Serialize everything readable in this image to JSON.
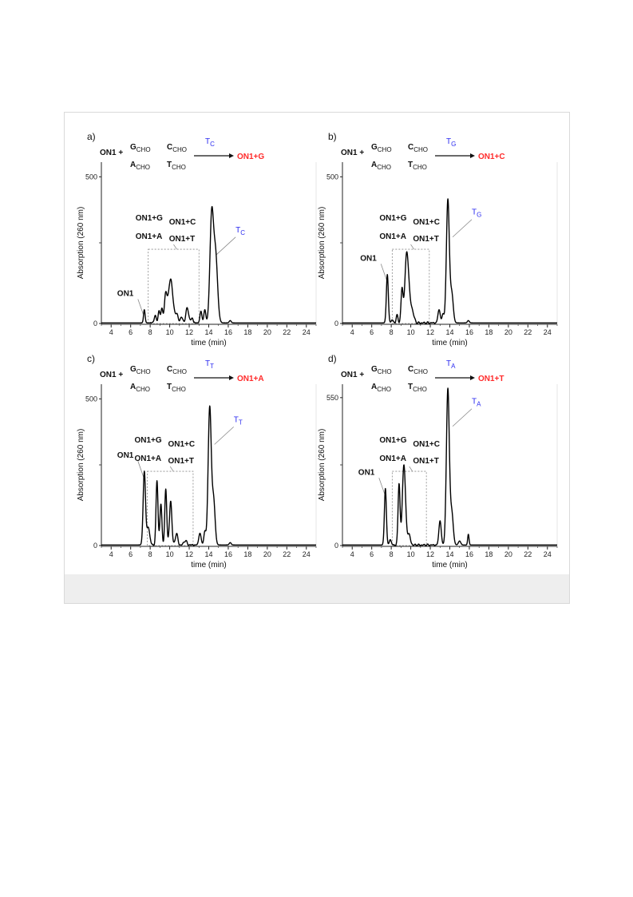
{
  "chart_data": [
    {
      "type": "line",
      "panel_label": "a)",
      "xlabel": "time (min)",
      "ylabel": "Absorption (260 nm)",
      "xlim": [
        3,
        25
      ],
      "ylim": [
        0,
        550
      ],
      "xticks": [
        4,
        6,
        8,
        10,
        12,
        14,
        16,
        18,
        20,
        22,
        24
      ],
      "yticks": [
        0,
        500
      ],
      "reaction": {
        "reactant": "ON1 +",
        "g": "G",
        "c": "C",
        "a": "A",
        "t": "T",
        "sub": "CHO",
        "template": "T",
        "template_sub": "C",
        "product": "ON1+G"
      },
      "annotations": {
        "top_left": "ON1+G",
        "top_right": "ON1+C",
        "bottom_left": "ON1+A",
        "bottom_right": "ON1+T",
        "on1": "ON1",
        "template": "T",
        "template_sub": "C"
      },
      "peaks": [
        {
          "x": 7.4,
          "h": 45,
          "w": 0.08
        },
        {
          "x": 8.5,
          "h": 25,
          "w": 0.1
        },
        {
          "x": 8.9,
          "h": 40,
          "w": 0.1
        },
        {
          "x": 9.2,
          "h": 48,
          "w": 0.1
        },
        {
          "x": 9.6,
          "h": 95,
          "w": 0.14
        },
        {
          "x": 10.1,
          "h": 150,
          "w": 0.22
        },
        {
          "x": 10.7,
          "h": 30,
          "w": 0.15
        },
        {
          "x": 11.2,
          "h": 20,
          "w": 0.12
        },
        {
          "x": 11.8,
          "h": 50,
          "w": 0.15
        },
        {
          "x": 12.3,
          "h": 15,
          "w": 0.12
        },
        {
          "x": 13.2,
          "h": 40,
          "w": 0.1
        },
        {
          "x": 13.6,
          "h": 45,
          "w": 0.1
        },
        {
          "x": 14.3,
          "h": 360,
          "w": 0.18
        },
        {
          "x": 14.7,
          "h": 230,
          "w": 0.2
        },
        {
          "x": 16.2,
          "h": 8,
          "w": 0.1
        }
      ]
    },
    {
      "type": "line",
      "panel_label": "b)",
      "xlabel": "time (min)",
      "ylabel": "Absorption (260 nm)",
      "xlim": [
        3,
        25
      ],
      "ylim": [
        0,
        550
      ],
      "xticks": [
        4,
        6,
        8,
        10,
        12,
        14,
        16,
        18,
        20,
        22,
        24
      ],
      "yticks": [
        0,
        500
      ],
      "reaction": {
        "reactant": "ON1 +",
        "g": "G",
        "c": "C",
        "a": "A",
        "t": "T",
        "sub": "CHO",
        "template": "T",
        "template_sub": "G",
        "product": "ON1+C"
      },
      "annotations": {
        "top_left": "ON1+G",
        "top_right": "ON1+C",
        "bottom_left": "ON1+A",
        "bottom_right": "ON1+T",
        "on1": "ON1",
        "template": "T",
        "template_sub": "G"
      },
      "peaks": [
        {
          "x": 7.6,
          "h": 165,
          "w": 0.1
        },
        {
          "x": 8.1,
          "h": 10,
          "w": 0.1
        },
        {
          "x": 8.6,
          "h": 25,
          "w": 0.1
        },
        {
          "x": 9.1,
          "h": 110,
          "w": 0.1
        },
        {
          "x": 9.6,
          "h": 240,
          "w": 0.2
        },
        {
          "x": 10.1,
          "h": 45,
          "w": 0.2
        },
        {
          "x": 12.9,
          "h": 45,
          "w": 0.12
        },
        {
          "x": 13.3,
          "h": 30,
          "w": 0.1
        },
        {
          "x": 13.8,
          "h": 420,
          "w": 0.15
        },
        {
          "x": 14.2,
          "h": 100,
          "w": 0.15
        },
        {
          "x": 15.9,
          "h": 8,
          "w": 0.1
        }
      ]
    },
    {
      "type": "line",
      "panel_label": "c)",
      "xlabel": "time (min)",
      "ylabel": "Absorption (260 nm)",
      "xlim": [
        3,
        25
      ],
      "ylim": [
        0,
        550
      ],
      "xticks": [
        4,
        6,
        8,
        10,
        12,
        14,
        16,
        18,
        20,
        22,
        24
      ],
      "yticks": [
        0,
        500
      ],
      "reaction": {
        "reactant": "ON1 +",
        "g": "G",
        "c": "C",
        "a": "A",
        "t": "T",
        "sub": "CHO",
        "template": "T",
        "template_sub": "T",
        "product": "ON1+A"
      },
      "annotations": {
        "top_left": "ON1+G",
        "top_right": "ON1+C",
        "bottom_left": "ON1+A",
        "bottom_right": "ON1+T",
        "on1": "ON1",
        "template": "T",
        "template_sub": "T"
      },
      "peaks": [
        {
          "x": 7.4,
          "h": 250,
          "w": 0.12
        },
        {
          "x": 7.8,
          "h": 60,
          "w": 0.15
        },
        {
          "x": 8.7,
          "h": 220,
          "w": 0.1
        },
        {
          "x": 9.1,
          "h": 140,
          "w": 0.1
        },
        {
          "x": 9.6,
          "h": 190,
          "w": 0.1
        },
        {
          "x": 10.1,
          "h": 150,
          "w": 0.12
        },
        {
          "x": 10.7,
          "h": 40,
          "w": 0.12
        },
        {
          "x": 11.6,
          "h": 15,
          "w": 0.15
        },
        {
          "x": 13.1,
          "h": 40,
          "w": 0.12
        },
        {
          "x": 13.6,
          "h": 45,
          "w": 0.1
        },
        {
          "x": 14.1,
          "h": 470,
          "w": 0.16
        },
        {
          "x": 14.5,
          "h": 150,
          "w": 0.15
        },
        {
          "x": 16.2,
          "h": 8,
          "w": 0.1
        }
      ]
    },
    {
      "type": "line",
      "panel_label": "d)",
      "xlabel": "time (min)",
      "ylabel": "Absorption (260 nm)",
      "xlim": [
        3,
        25
      ],
      "ylim": [
        0,
        600
      ],
      "xticks": [
        4,
        6,
        8,
        10,
        12,
        14,
        16,
        18,
        20,
        22,
        24
      ],
      "yticks": [
        0,
        550
      ],
      "reaction": {
        "reactant": "ON1 +",
        "g": "G",
        "c": "C",
        "a": "A",
        "t": "T",
        "sub": "CHO",
        "template": "T",
        "template_sub": "A",
        "product": "ON1+T"
      },
      "annotations": {
        "top_left": "ON1+G",
        "top_right": "ON1+C",
        "bottom_left": "ON1+A",
        "bottom_right": "ON1+T",
        "on1": "ON1",
        "template": "T",
        "template_sub": "A"
      },
      "peaks": [
        {
          "x": 7.4,
          "h": 210,
          "w": 0.1
        },
        {
          "x": 7.9,
          "h": 20,
          "w": 0.1
        },
        {
          "x": 8.8,
          "h": 230,
          "w": 0.1
        },
        {
          "x": 9.3,
          "h": 300,
          "w": 0.16
        },
        {
          "x": 9.8,
          "h": 40,
          "w": 0.15
        },
        {
          "x": 13.0,
          "h": 90,
          "w": 0.12
        },
        {
          "x": 13.8,
          "h": 580,
          "w": 0.15
        },
        {
          "x": 14.2,
          "h": 120,
          "w": 0.15
        },
        {
          "x": 15.0,
          "h": 15,
          "w": 0.12
        },
        {
          "x": 15.9,
          "h": 40,
          "w": 0.07
        }
      ]
    }
  ]
}
